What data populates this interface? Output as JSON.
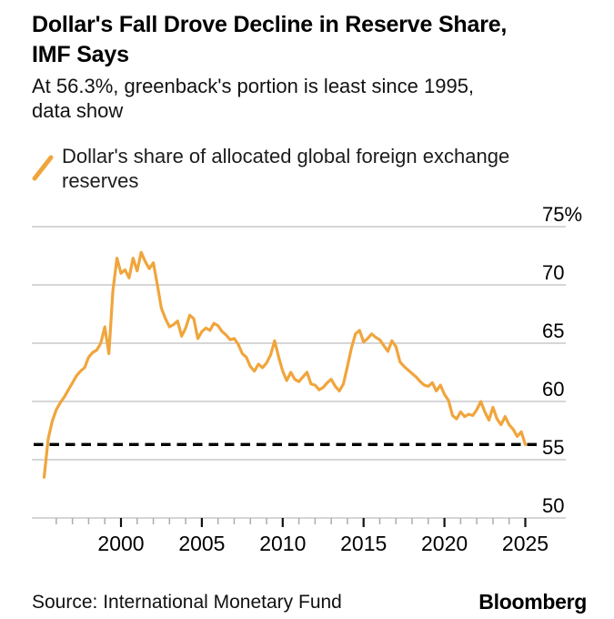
{
  "header": {
    "title": "Dollar's Fall Drove Decline in Reserve Share,\nIMF Says",
    "subtitle": "At 56.3%, greenback's portion is least since 1995,\ndata show"
  },
  "legend": {
    "label": "Dollar's share of allocated global foreign exchange\nreserves",
    "swatch_color": "#F0A53C"
  },
  "footer": {
    "source": "Source: International Monetary Fund",
    "brand": "Bloomberg"
  },
  "colors": {
    "line": "#F0A53C",
    "grid": "#C8C8C8",
    "text": "#000000",
    "tick_minor": "#ACACAC",
    "tick_major": "#111111",
    "reference": "#000000",
    "background": "#FFFFFF"
  },
  "chart_data": {
    "type": "line",
    "title": "Dollar's Fall Drove Decline in Reserve Share, IMF Says",
    "subtitle": "At 56.3%, greenback's portion is least since 1995, data show",
    "legend_position": "top-left",
    "grid": "horizontal",
    "y_axis": {
      "unit": "%",
      "range": [
        50,
        75
      ],
      "labels_side": "right",
      "ticks": [
        {
          "value": 75,
          "label": "75%"
        },
        {
          "value": 70,
          "label": "70"
        },
        {
          "value": 65,
          "label": "65"
        },
        {
          "value": 60,
          "label": "60"
        },
        {
          "value": 55,
          "label": "55"
        },
        {
          "value": 50,
          "label": "50"
        }
      ]
    },
    "x_axis": {
      "range": [
        1994.5,
        2027.6
      ],
      "ticks": [
        2000,
        2005,
        2010,
        2015,
        2020,
        2025
      ],
      "minor_tick_start": 1996,
      "minor_tick_end": 2025,
      "minor_tick_step_years": 1
    },
    "reference_line": {
      "value": 56.3,
      "style": "dashed",
      "color": "#000000"
    },
    "series": [
      {
        "name": "Dollar's share of allocated global foreign exchange reserves",
        "color": "#F0A53C",
        "x_unit": "year",
        "x_start": 1995.25,
        "x_step": 0.25,
        "values": [
          53.5,
          56.8,
          58.3,
          59.3,
          59.9,
          60.4,
          61.0,
          61.6,
          62.2,
          62.6,
          62.9,
          63.8,
          64.2,
          64.4,
          65.0,
          66.4,
          64.1,
          69.5,
          72.3,
          71.0,
          71.3,
          70.6,
          72.3,
          71.2,
          72.8,
          72.0,
          71.4,
          71.9,
          70.0,
          68.0,
          67.1,
          66.4,
          66.6,
          66.9,
          65.6,
          66.3,
          67.4,
          67.1,
          65.4,
          66.0,
          66.3,
          66.1,
          66.7,
          66.5,
          66.0,
          65.7,
          65.3,
          65.4,
          64.9,
          64.1,
          63.8,
          63.0,
          62.6,
          63.2,
          62.9,
          63.3,
          64.0,
          65.2,
          63.8,
          62.6,
          61.8,
          62.5,
          61.9,
          61.7,
          62.1,
          62.5,
          61.5,
          61.4,
          61.0,
          61.2,
          61.6,
          61.9,
          61.3,
          60.9,
          61.5,
          63.0,
          64.6,
          65.8,
          66.1,
          65.1,
          65.4,
          65.8,
          65.5,
          65.3,
          64.8,
          64.3,
          65.2,
          64.7,
          63.4,
          63.0,
          62.7,
          62.4,
          62.1,
          61.7,
          61.4,
          61.3,
          61.6,
          60.9,
          61.4,
          60.6,
          60.1,
          58.8,
          58.5,
          59.1,
          58.7,
          58.9,
          58.8,
          59.3,
          60.0,
          59.1,
          58.4,
          59.5,
          58.5,
          58.0,
          58.7,
          58.0,
          57.6,
          57.0,
          57.4,
          56.3
        ]
      }
    ]
  }
}
